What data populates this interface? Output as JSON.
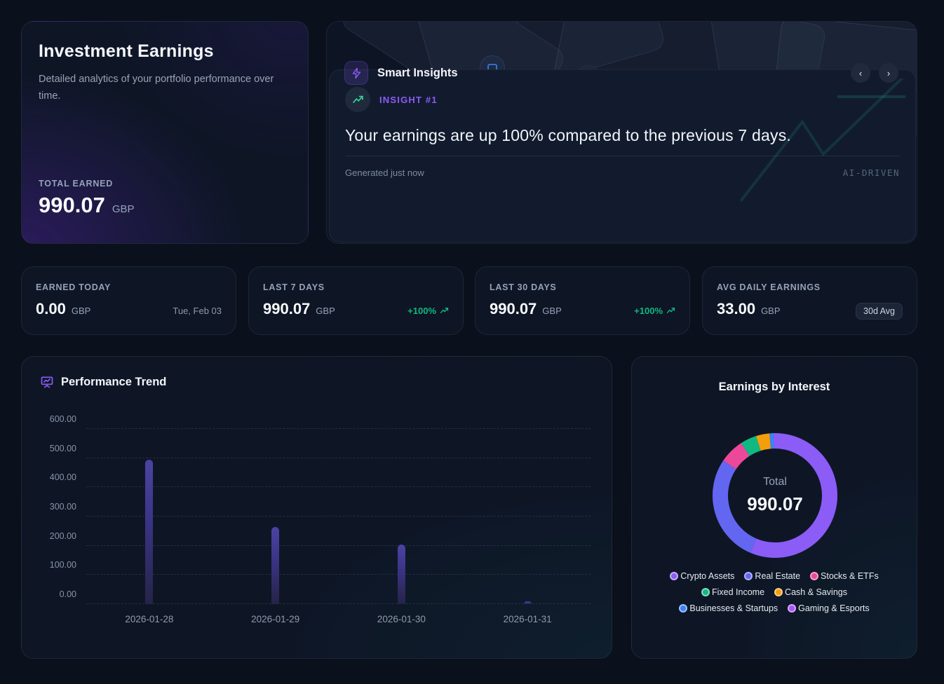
{
  "hero": {
    "title": "Investment Earnings",
    "description": "Detailed analytics of your portfolio performance over time.",
    "total_label": "TOTAL EARNED",
    "total_value": "990.07",
    "currency": "GBP"
  },
  "insights": {
    "header": "Smart Insights",
    "badge_label": "INSIGHT #1",
    "headline": "Your earnings are up 100% compared to the previous 7 days.",
    "generated": "Generated just now",
    "tag": "AI-DRIVEN",
    "nav_prev": "‹",
    "nav_next": "›"
  },
  "stats": [
    {
      "label": "EARNED TODAY",
      "value": "0.00",
      "currency": "GBP",
      "meta": "Tue, Feb 03"
    },
    {
      "label": "LAST 7 DAYS",
      "value": "990.07",
      "currency": "GBP",
      "trend": "+100%"
    },
    {
      "label": "LAST 30 DAYS",
      "value": "990.07",
      "currency": "GBP",
      "trend": "+100%"
    },
    {
      "label": "AVG DAILY EARNINGS",
      "value": "33.00",
      "currency": "GBP",
      "badge": "30d Avg"
    }
  ],
  "colors": {
    "accent_purple": "#8b5cf6",
    "positive_green": "#10b981",
    "bar_indigo": "#3a3384",
    "teal_decoration": "#2dd4bf"
  },
  "chart_data": [
    {
      "type": "bar",
      "title": "Performance Trend",
      "categories": [
        "2026-01-28",
        "2026-01-29",
        "2026-01-30",
        "2026-01-31"
      ],
      "values": [
        495,
        265,
        205,
        10
      ],
      "xlabel": "",
      "ylabel": "",
      "ylim": [
        0,
        600
      ],
      "ytick_step": 100,
      "grid": true,
      "grid_style": "dashed"
    },
    {
      "type": "pie",
      "title": "Earnings by Interest",
      "center_label": "Total",
      "center_value": "990.07",
      "legend_position": "bottom",
      "segments": [
        {
          "label": "Crypto Assets",
          "pct": 56.5,
          "color": "#8b5cf6"
        },
        {
          "label": "Real Estate",
          "pct": 28.0,
          "color": "#6366f1"
        },
        {
          "label": "Stocks & ETFs",
          "pct": 6.4,
          "color": "#ec4899"
        },
        {
          "label": "Fixed Income",
          "pct": 4.2,
          "color": "#10b981"
        },
        {
          "label": "Cash & Savings",
          "pct": 3.5,
          "color": "#f59e0b"
        },
        {
          "label": "Businesses & Startups",
          "pct": 1.2,
          "color": "#3b82f6"
        },
        {
          "label": "Gaming & Esports",
          "pct": 0.2,
          "color": "#a855f7"
        }
      ]
    }
  ]
}
